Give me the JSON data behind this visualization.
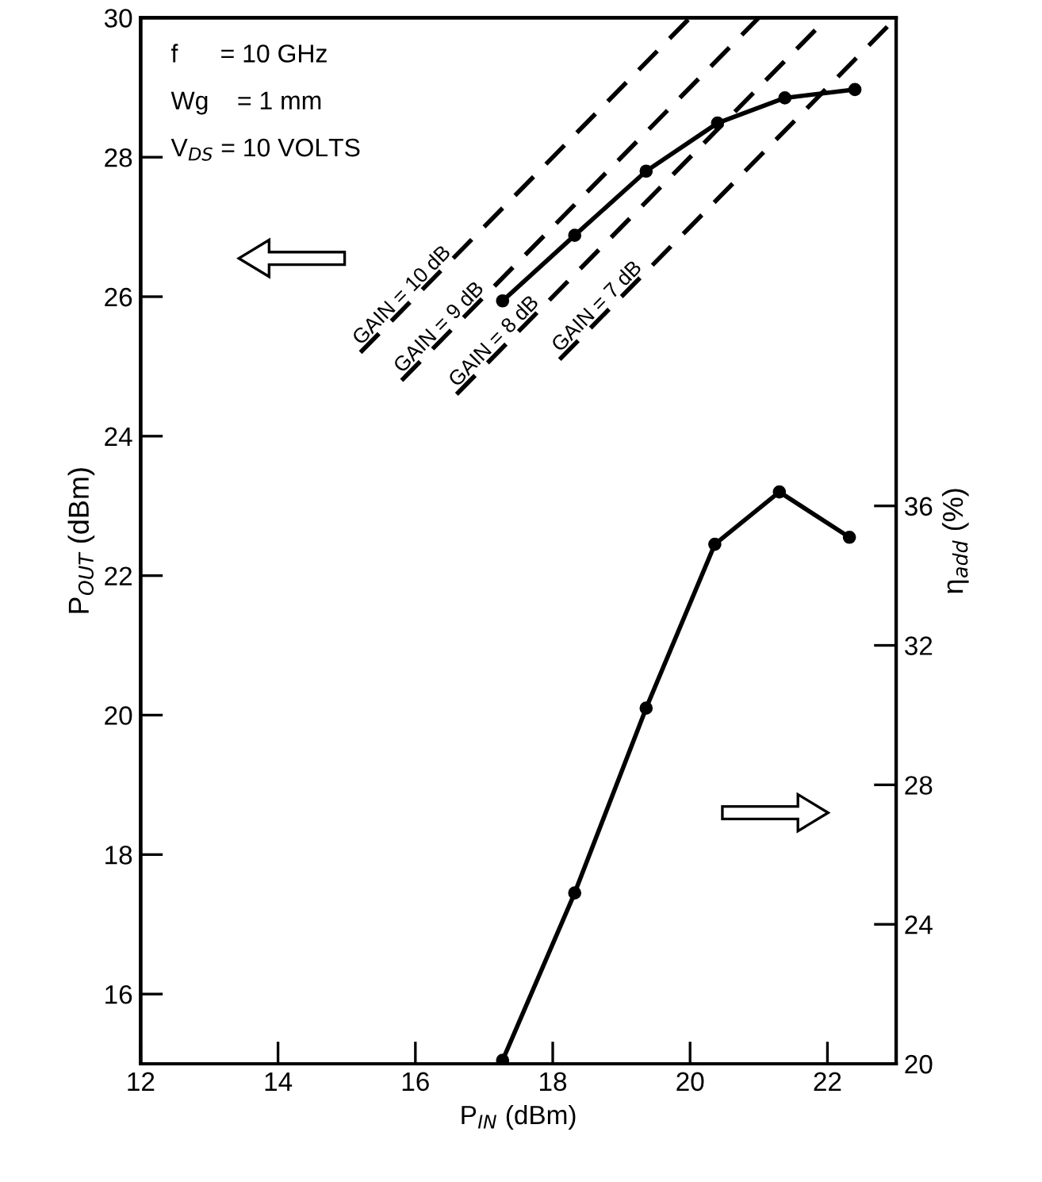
{
  "chart_data": {
    "type": "line",
    "xlabel": "P$_{IN}$ (dBm)",
    "ylabel": "P$_{OUT}$ (dBm)",
    "y2label": "η$_{add}$ (%)",
    "xlim": [
      12,
      23
    ],
    "xticks": [
      12,
      14,
      16,
      18,
      20,
      22
    ],
    "ylim": [
      15,
      30
    ],
    "yticks": [
      16,
      18,
      20,
      22,
      24,
      26,
      28,
      30
    ],
    "y2lim": [
      20,
      50
    ],
    "y2ticks": [
      20,
      24,
      28,
      32,
      36
    ],
    "grid": false,
    "legend": false,
    "marker": "circle",
    "line_style": "solid",
    "annotations": [
      "f      = 10 GHz",
      "Wg    = 1 mm",
      "V$_{DS}$ = 10 VOLTS"
    ],
    "series": [
      {
        "name": "GAIN = 10 dB",
        "color": "#000000",
        "x": [
          15.2,
          20
        ],
        "values": [
          25.2,
          30
        ],
        "marker": "none",
        "line_style": "dashed"
      },
      {
        "name": "GAIN = 9 dB",
        "color": "#000000",
        "x": [
          15.8,
          21
        ],
        "values": [
          24.8,
          30
        ],
        "marker": "none",
        "line_style": "dashed"
      },
      {
        "name": "GAIN = 8 dB",
        "color": "#000000",
        "x": [
          16.6,
          22
        ],
        "values": [
          24.6,
          30
        ],
        "marker": "none",
        "line_style": "dashed"
      },
      {
        "name": "GAIN = 7 dB",
        "color": "#000000",
        "x": [
          18.1,
          23
        ],
        "values": [
          25.1,
          30
        ],
        "marker": "none",
        "line_style": "dashed"
      },
      {
        "color": "#000000",
        "x": [
          17.27,
          18.32,
          19.36,
          20.4,
          21.38,
          22.4
        ],
        "values": [
          25.94,
          26.88,
          27.8,
          28.49,
          28.85,
          28.97
        ]
      },
      {
        "color": "#000000",
        "axis": "y2",
        "x": [
          17.27,
          18.32,
          19.36,
          20.36,
          21.3,
          22.32
        ],
        "values": [
          20.1,
          24.9,
          30.2,
          34.9,
          36.4,
          35.1
        ]
      }
    ]
  }
}
